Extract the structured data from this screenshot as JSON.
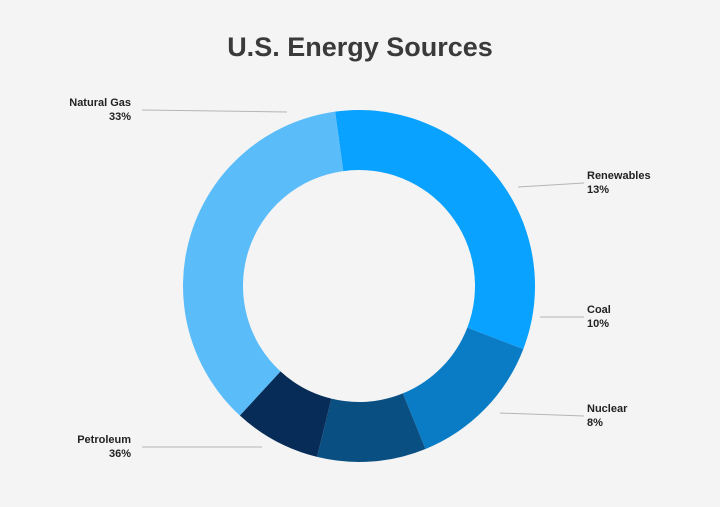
{
  "chart_data": {
    "type": "pie",
    "variant": "donut",
    "title": "U.S. Energy Sources",
    "slices": [
      {
        "label": "Natural Gas",
        "value": 33,
        "value_label": "33%",
        "color": "#0aa2ff"
      },
      {
        "label": "Renewables",
        "value": 13,
        "value_label": "13%",
        "color": "#0a7cc6"
      },
      {
        "label": "Coal",
        "value": 10,
        "value_label": "10%",
        "color": "#0a4f82"
      },
      {
        "label": "Nuclear",
        "value": 8,
        "value_label": "8%",
        "color": "#062c57"
      },
      {
        "label": "Petroleum",
        "value": 36,
        "value_label": "36%",
        "color": "#5bbcfa"
      }
    ],
    "background": "#f4f4f4",
    "leader_line_color": "#b5b5b5"
  }
}
